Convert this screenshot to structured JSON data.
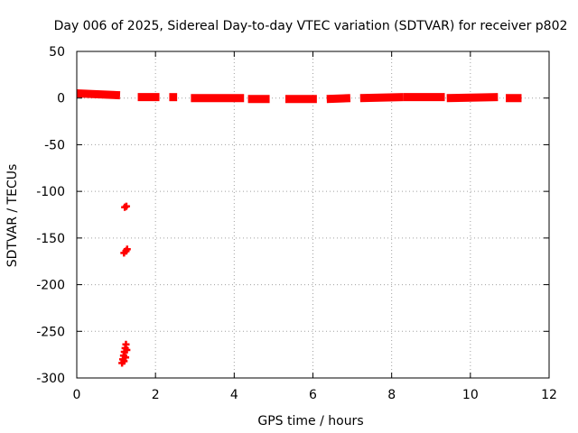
{
  "chart_data": {
    "type": "scatter",
    "title": "Day 006 of 2025, Sidereal Day-to-day VTEC variation (SDTVAR) for receiver p802",
    "xlabel": "GPS time / hours",
    "ylabel": "SDTVAR / TECUs",
    "xlim": [
      0,
      12
    ],
    "ylim": [
      -300,
      50
    ],
    "xticks": [
      0,
      2,
      4,
      6,
      8,
      10,
      12
    ],
    "yticks": [
      -300,
      -250,
      -200,
      -150,
      -100,
      -50,
      0,
      50
    ],
    "grid": true,
    "marker_color": "#ff0000",
    "series": [
      {
        "name": "SDTVAR",
        "segments": [
          {
            "x0": 0.0,
            "x1": 1.1,
            "y0": 5,
            "y1": 3
          },
          {
            "x0": 1.55,
            "x1": 2.1,
            "y0": 1,
            "y1": 1
          },
          {
            "x0": 2.35,
            "x1": 2.55,
            "y0": 1,
            "y1": 1
          },
          {
            "x0": 2.9,
            "x1": 4.25,
            "y0": 0,
            "y1": 0
          },
          {
            "x0": 4.35,
            "x1": 4.9,
            "y0": -1,
            "y1": -1
          },
          {
            "x0": 5.3,
            "x1": 6.1,
            "y0": -1,
            "y1": -1
          },
          {
            "x0": 6.35,
            "x1": 6.95,
            "y0": -1,
            "y1": 0
          },
          {
            "x0": 7.2,
            "x1": 8.3,
            "y0": 0,
            "y1": 1
          },
          {
            "x0": 8.3,
            "x1": 9.35,
            "y0": 1,
            "y1": 1
          },
          {
            "x0": 9.4,
            "x1": 10.7,
            "y0": 0,
            "y1": 1
          },
          {
            "x0": 10.9,
            "x1": 11.3,
            "y0": 0,
            "y1": 0
          }
        ],
        "points": [
          {
            "x": 1.22,
            "y": -117
          },
          {
            "x": 1.26,
            "y": -116
          },
          {
            "x": 1.2,
            "y": -166
          },
          {
            "x": 1.25,
            "y": -164
          },
          {
            "x": 1.28,
            "y": -162
          },
          {
            "x": 1.15,
            "y": -284
          },
          {
            "x": 1.17,
            "y": -280
          },
          {
            "x": 1.19,
            "y": -276
          },
          {
            "x": 1.21,
            "y": -272
          },
          {
            "x": 1.23,
            "y": -268
          },
          {
            "x": 1.25,
            "y": -264
          },
          {
            "x": 1.2,
            "y": -282
          },
          {
            "x": 1.24,
            "y": -278
          },
          {
            "x": 1.27,
            "y": -270
          }
        ]
      }
    ]
  }
}
